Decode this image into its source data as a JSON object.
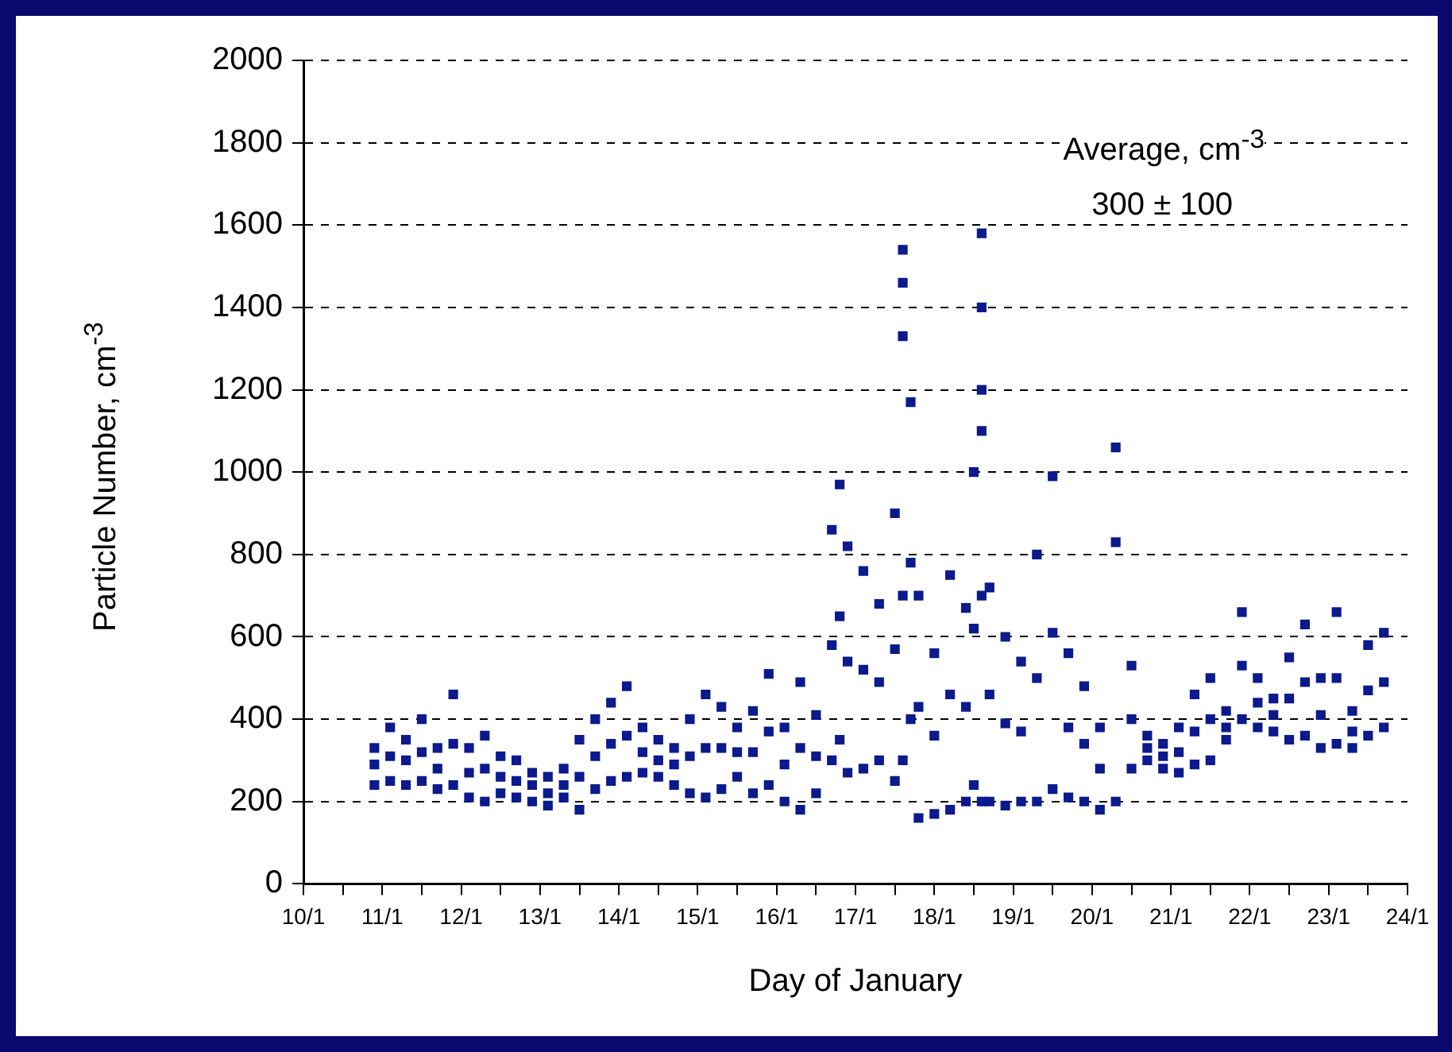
{
  "chart_data": {
    "type": "scatter",
    "xlabel": "Day of January",
    "ylabel": "Particle Number, cm$^{-3}$",
    "annotations": [
      "Average, cm$^{-3}$",
      "300 ± 100"
    ],
    "marker": "square",
    "grid": "y",
    "xlim": [
      "--01-10",
      "--01-24"
    ],
    "xticks": [
      {
        "value": "--01-10",
        "label": "10/1"
      },
      {
        "value": "--01-10T12:00",
        "label": null
      },
      {
        "value": "--01-11",
        "label": "11/1"
      },
      {
        "value": "--01-11T12:00",
        "label": null
      },
      {
        "value": "--01-12",
        "label": "12/1"
      },
      {
        "value": "--01-12T12:00",
        "label": null
      },
      {
        "value": "--01-13",
        "label": "13/1"
      },
      {
        "value": "--01-13T12:00",
        "label": null
      },
      {
        "value": "--01-14",
        "label": "14/1"
      },
      {
        "value": "--01-14T12:00",
        "label": null
      },
      {
        "value": "--01-15",
        "label": "15/1"
      },
      {
        "value": "--01-15T12:00",
        "label": null
      },
      {
        "value": "--01-16",
        "label": "16/1"
      },
      {
        "value": "--01-16T12:00",
        "label": null
      },
      {
        "value": "--01-17",
        "label": "17/1"
      },
      {
        "value": "--01-17T12:00",
        "label": null
      },
      {
        "value": "--01-18",
        "label": "18/1"
      },
      {
        "value": "--01-18T12:00",
        "label": null
      },
      {
        "value": "--01-19",
        "label": "19/1"
      },
      {
        "value": "--01-19T12:00",
        "label": null
      },
      {
        "value": "--01-20",
        "label": "20/1"
      },
      {
        "value": "--01-20T12:00",
        "label": null
      },
      {
        "value": "--01-21",
        "label": "21/1"
      },
      {
        "value": "--01-21T12:00",
        "label": null
      },
      {
        "value": "--01-22",
        "label": "22/1"
      },
      {
        "value": "--01-22T12:00",
        "label": null
      },
      {
        "value": "--01-23",
        "label": "23/1"
      },
      {
        "value": "--01-23T12:00",
        "label": null
      },
      {
        "value": "--01-24",
        "label": "24/1"
      }
    ],
    "ylim": [
      0,
      2000
    ],
    "yticks": [
      0,
      200,
      400,
      600,
      800,
      1000,
      1200,
      1400,
      1600,
      1800,
      2000
    ],
    "series": [
      {
        "color": "#0b1a8c",
        "x": [
          "--01-10T21:36",
          "--01-10T21:36",
          "--01-10T21:36",
          "--01-11T02:24",
          "--01-11T02:24",
          "--01-11T02:24",
          "--01-11T07:12",
          "--01-11T07:12",
          "--01-11T07:12",
          "--01-11T12:00",
          "--01-11T12:00",
          "--01-11T12:00",
          "--01-11T16:48",
          "--01-11T16:48",
          "--01-11T16:48",
          "--01-11T21:36",
          "--01-11T21:36",
          "--01-11T21:36",
          "--01-12T02:24",
          "--01-12T02:24",
          "--01-12T02:24",
          "--01-12T07:12",
          "--01-12T07:12",
          "--01-12T07:12",
          "--01-12T12:00",
          "--01-12T12:00",
          "--01-12T12:00",
          "--01-12T16:48",
          "--01-12T16:48",
          "--01-12T16:48",
          "--01-12T21:36",
          "--01-12T21:36",
          "--01-12T21:36",
          "--01-13T02:24",
          "--01-13T02:24",
          "--01-13T02:24",
          "--01-13T07:12",
          "--01-13T07:12",
          "--01-13T07:12",
          "--01-13T12:00",
          "--01-13T12:00",
          "--01-13T12:00",
          "--01-13T16:48",
          "--01-13T16:48",
          "--01-13T16:48",
          "--01-13T21:36",
          "--01-13T21:36",
          "--01-13T21:36",
          "--01-14T02:24",
          "--01-14T02:24",
          "--01-14T02:24",
          "--01-14T07:12",
          "--01-14T07:12",
          "--01-14T07:12",
          "--01-14T12:00",
          "--01-14T12:00",
          "--01-14T12:00",
          "--01-14T16:48",
          "--01-14T16:48",
          "--01-14T16:48",
          "--01-14T21:36",
          "--01-14T21:36",
          "--01-14T21:36",
          "--01-15T02:24",
          "--01-15T02:24",
          "--01-15T02:24",
          "--01-15T07:12",
          "--01-15T07:12",
          "--01-15T07:12",
          "--01-15T12:00",
          "--01-15T12:00",
          "--01-15T12:00",
          "--01-15T16:48",
          "--01-15T16:48",
          "--01-15T16:48",
          "--01-15T21:36",
          "--01-15T21:36",
          "--01-15T21:36",
          "--01-16T02:24",
          "--01-16T02:24",
          "--01-16T02:24",
          "--01-16T07:12",
          "--01-16T07:12",
          "--01-16T07:12",
          "--01-16T12:00",
          "--01-16T12:00",
          "--01-16T12:00",
          "--01-16T16:48",
          "--01-16T16:48",
          "--01-16T16:48",
          "--01-16T19:12",
          "--01-16T19:12",
          "--01-16T19:12",
          "--01-16T21:36",
          "--01-16T21:36",
          "--01-16T21:36",
          "--01-17T02:24",
          "--01-17T02:24",
          "--01-17T02:24",
          "--01-17T07:12",
          "--01-17T07:12",
          "--01-17T07:12",
          "--01-17T12:00",
          "--01-17T12:00",
          "--01-17T12:00",
          "--01-17T14:24",
          "--01-17T14:24",
          "--01-17T14:24",
          "--01-17T14:24",
          "--01-17T14:24",
          "--01-17T16:48",
          "--01-17T16:48",
          "--01-17T16:48",
          "--01-17T19:12",
          "--01-17T19:12",
          "--01-17T19:12",
          "--01-18T00:00",
          "--01-18T00:00",
          "--01-18T00:00",
          "--01-18T04:48",
          "--01-18T04:48",
          "--01-18T04:48",
          "--01-18T09:36",
          "--01-18T09:36",
          "--01-18T09:36",
          "--01-18T12:00",
          "--01-18T12:00",
          "--01-18T12:00",
          "--01-18T14:24",
          "--01-18T14:24",
          "--01-18T14:24",
          "--01-18T14:24",
          "--01-18T14:24",
          "--01-18T14:24",
          "--01-18T16:48",
          "--01-18T16:48",
          "--01-18T16:48",
          "--01-18T21:36",
          "--01-18T21:36",
          "--01-18T21:36",
          "--01-19T02:24",
          "--01-19T02:24",
          "--01-19T02:24",
          "--01-19T07:12",
          "--01-19T07:12",
          "--01-19T07:12",
          "--01-19T12:00",
          "--01-19T12:00",
          "--01-19T12:00",
          "--01-19T16:48",
          "--01-19T16:48",
          "--01-19T16:48",
          "--01-19T21:36",
          "--01-19T21:36",
          "--01-19T21:36",
          "--01-20T02:24",
          "--01-20T02:24",
          "--01-20T02:24",
          "--01-20T07:12",
          "--01-20T07:12",
          "--01-20T07:12",
          "--01-20T12:00",
          "--01-20T12:00",
          "--01-20T12:00",
          "--01-20T16:48",
          "--01-20T16:48",
          "--01-20T16:48",
          "--01-20T21:36",
          "--01-20T21:36",
          "--01-20T21:36",
          "--01-21T02:24",
          "--01-21T02:24",
          "--01-21T02:24",
          "--01-21T07:12",
          "--01-21T07:12",
          "--01-21T07:12",
          "--01-21T12:00",
          "--01-21T12:00",
          "--01-21T12:00",
          "--01-21T16:48",
          "--01-21T16:48",
          "--01-21T16:48",
          "--01-21T21:36",
          "--01-21T21:36",
          "--01-21T21:36",
          "--01-22T02:24",
          "--01-22T02:24",
          "--01-22T02:24",
          "--01-22T07:12",
          "--01-22T07:12",
          "--01-22T07:12",
          "--01-22T12:00",
          "--01-22T12:00",
          "--01-22T12:00",
          "--01-22T16:48",
          "--01-22T16:48",
          "--01-22T16:48",
          "--01-22T21:36",
          "--01-22T21:36",
          "--01-22T21:36",
          "--01-23T02:24",
          "--01-23T02:24",
          "--01-23T02:24",
          "--01-23T07:12",
          "--01-23T07:12",
          "--01-23T07:12",
          "--01-23T12:00",
          "--01-23T12:00",
          "--01-23T12:00",
          "--01-23T16:48",
          "--01-23T16:48",
          "--01-23T16:48"
        ],
        "values": [
          240,
          290,
          330,
          250,
          310,
          380,
          240,
          300,
          350,
          250,
          320,
          400,
          230,
          280,
          330,
          240,
          340,
          460,
          210,
          270,
          330,
          200,
          280,
          360,
          220,
          260,
          310,
          210,
          250,
          300,
          200,
          240,
          270,
          190,
          220,
          260,
          210,
          240,
          280,
          180,
          260,
          350,
          230,
          310,
          400,
          250,
          340,
          440,
          260,
          360,
          480,
          270,
          320,
          380,
          260,
          300,
          350,
          240,
          290,
          330,
          220,
          310,
          400,
          210,
          330,
          460,
          230,
          330,
          430,
          260,
          320,
          380,
          220,
          320,
          420,
          240,
          370,
          510,
          200,
          290,
          380,
          180,
          330,
          490,
          220,
          310,
          410,
          300,
          580,
          860,
          350,
          650,
          970,
          270,
          540,
          820,
          280,
          520,
          760,
          300,
          490,
          680,
          250,
          570,
          900,
          300,
          1330,
          1460,
          1540,
          700,
          400,
          780,
          1170,
          160,
          430,
          700,
          170,
          360,
          560,
          180,
          460,
          750,
          200,
          430,
          670,
          240,
          620,
          1000,
          200,
          1100,
          1200,
          1400,
          1580,
          700,
          200,
          460,
          720,
          190,
          390,
          600,
          200,
          370,
          540,
          200,
          500,
          800,
          230,
          610,
          990,
          210,
          380,
          560,
          200,
          340,
          480,
          180,
          280,
          380,
          200,
          830,
          1060,
          280,
          400,
          530,
          300,
          330,
          360,
          280,
          310,
          340,
          270,
          320,
          380,
          290,
          370,
          460,
          300,
          400,
          500,
          350,
          380,
          420,
          400,
          530,
          660,
          380,
          440,
          500,
          370,
          410,
          450,
          350,
          450,
          550,
          360,
          490,
          630,
          330,
          410,
          500,
          340,
          500,
          660,
          330,
          370,
          420,
          360,
          470,
          580,
          380,
          490,
          610
        ]
      }
    ]
  }
}
